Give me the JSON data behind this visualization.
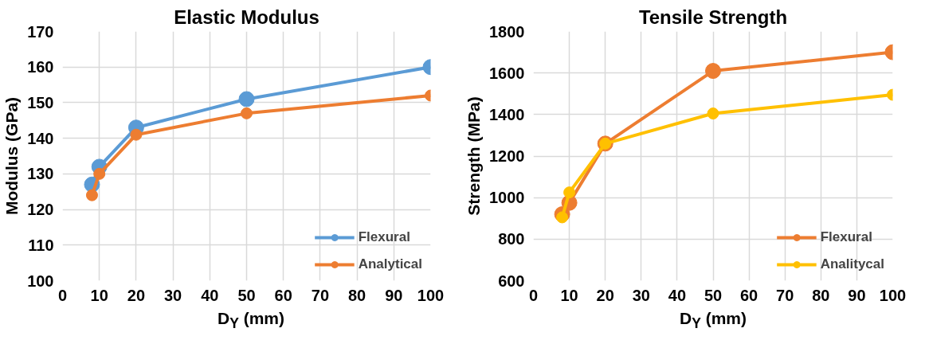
{
  "chart_data": [
    {
      "type": "line",
      "title": "Elastic Modulus",
      "xlabel": "D$_{Y}$ (mm)",
      "ylabel": "Modulus (GPa)",
      "x": [
        8,
        10,
        20,
        50,
        100
      ],
      "xlim": [
        0,
        100
      ],
      "xticks": [
        0,
        10,
        20,
        30,
        40,
        50,
        60,
        70,
        80,
        90,
        100
      ],
      "ylim": [
        100,
        170
      ],
      "yticks": [
        100,
        110,
        120,
        130,
        140,
        150,
        160,
        170
      ],
      "grid": true,
      "legend": "bottom right",
      "marker": "circle",
      "series": [
        {
          "name": "Flexural",
          "color": "#5b9bd5",
          "values": [
            127,
            132,
            143,
            151,
            160
          ]
        },
        {
          "name": "Analytical",
          "color": "#ed7d31",
          "values": [
            124,
            130,
            141,
            147,
            152
          ]
        }
      ]
    },
    {
      "type": "line",
      "title": "Tensile Strength",
      "xlabel": "D$_{Y}$ (mm)",
      "ylabel": "Strength (MPa)",
      "x": [
        8,
        10,
        20,
        50,
        100
      ],
      "xlim": [
        0,
        100
      ],
      "xticks": [
        0,
        10,
        20,
        30,
        40,
        50,
        60,
        70,
        80,
        90,
        100
      ],
      "ylim": [
        600,
        1800
      ],
      "yticks": [
        600,
        800,
        1000,
        1200,
        1400,
        1600,
        1800
      ],
      "grid": true,
      "legend": "bottom right",
      "marker": "circle",
      "series": [
        {
          "name": "Flexural",
          "color": "#ed7d31",
          "values": [
            920,
            975,
            1260,
            1610,
            1700
          ]
        },
        {
          "name": "Analitycal",
          "color": "#ffc000",
          "values": [
            905,
            1025,
            1260,
            1405,
            1495
          ]
        }
      ]
    }
  ]
}
